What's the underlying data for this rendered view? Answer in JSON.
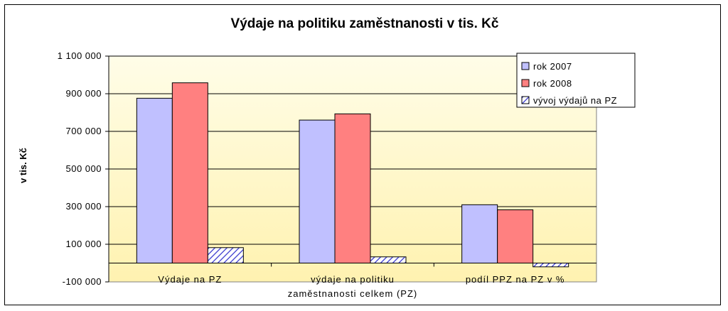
{
  "chart_data": {
    "type": "bar",
    "title": "Výdaje na politiku zaměstnanosti v tis. Kč",
    "ylabel": "v tis. Kč",
    "xlabel": "",
    "categories": [
      "Výdaje na PZ",
      "výdaje na politiku zaměstnanosti celkem (PZ)",
      "podíl PPZ na PZ v %"
    ],
    "category_label_lines": [
      [
        "Výdaje na PZ"
      ],
      [
        "výdaje na politiku",
        "zaměstnanosti celkem (PZ)"
      ],
      [
        "podíl PPZ na PZ v %"
      ]
    ],
    "series": [
      {
        "name": "rok 2007",
        "values": [
          876000,
          760000,
          310000
        ],
        "color": "#c0c0ff",
        "pattern": "solid"
      },
      {
        "name": "rok 2008",
        "values": [
          958000,
          793000,
          283000
        ],
        "color": "#ff8080",
        "pattern": "solid"
      },
      {
        "name": "vývoj výdajů na PZ",
        "values": [
          82000,
          33000,
          -20000
        ],
        "color": "#3333cc",
        "pattern": "hatch"
      }
    ],
    "ylim": [
      -100000,
      1100000
    ],
    "yticks": [
      -100000,
      100000,
      300000,
      500000,
      700000,
      900000,
      1100000
    ],
    "ytick_labels": [
      "-100 000",
      "100 000",
      "300 000",
      "500 000",
      "700 000",
      "900 000",
      "1 100 000"
    ],
    "grid": true,
    "legend": "top-right",
    "background_gradient": [
      "#fffde8",
      "#fff2b0"
    ]
  }
}
